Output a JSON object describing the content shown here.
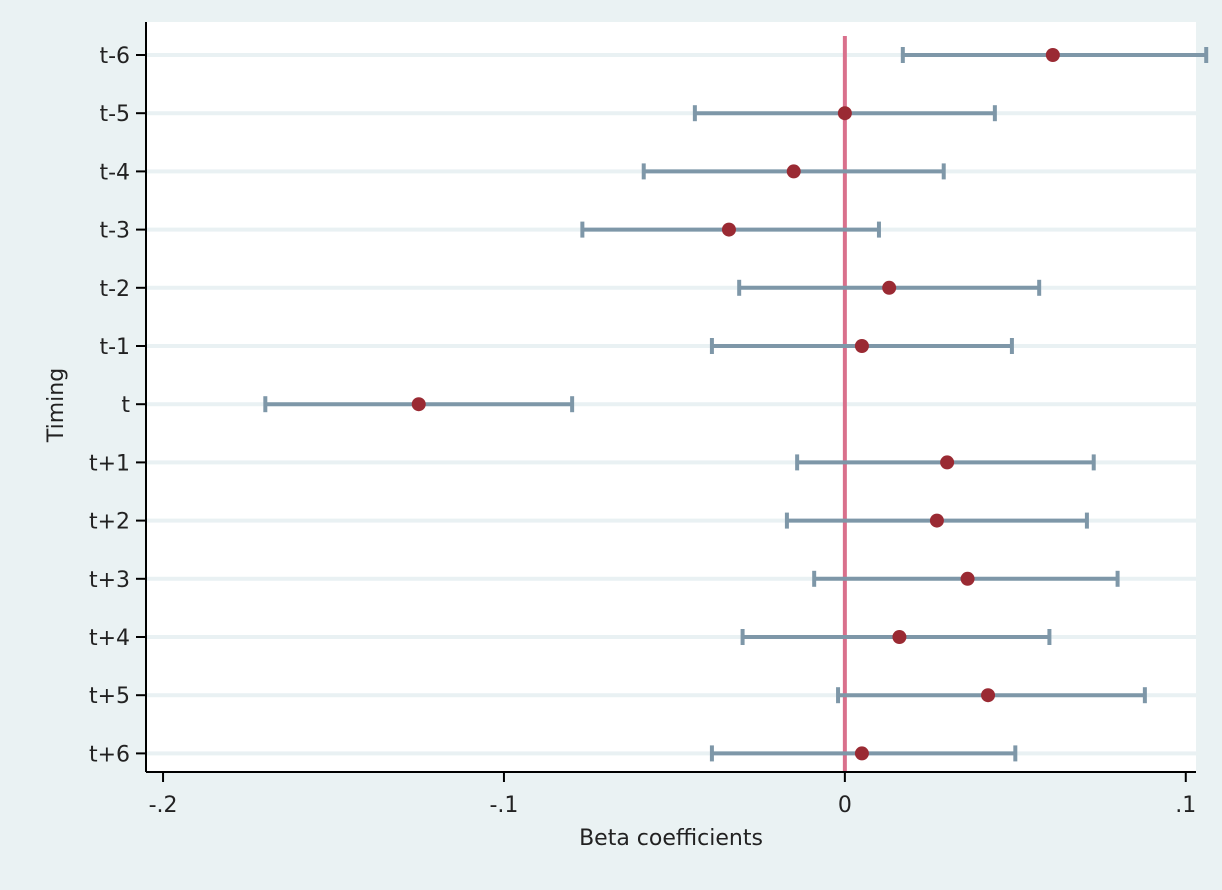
{
  "chart_data": {
    "type": "scatter",
    "title": "",
    "xlabel": "Beta coefficients",
    "ylabel": "Timing",
    "xlim": [
      -0.205,
      0.103
    ],
    "xticks": [
      {
        "value": -0.2,
        "label": "-.2"
      },
      {
        "value": -0.1,
        "label": "-.1"
      },
      {
        "value": 0,
        "label": "0"
      },
      {
        "value": 0.1,
        "label": ".1"
      }
    ],
    "reference_line": {
      "x": 0,
      "color": "#d9708c"
    },
    "grid": true,
    "categories": [
      "t-6",
      "t-5",
      "t-4",
      "t-3",
      "t-2",
      "t-1",
      "t",
      "t+1",
      "t+2",
      "t+3",
      "t+4",
      "t+5",
      "t+6"
    ],
    "estimates": [
      0.061,
      0.0,
      -0.015,
      -0.034,
      0.013,
      0.005,
      -0.125,
      0.03,
      0.027,
      0.036,
      0.016,
      0.042,
      0.005
    ],
    "ci_lower": [
      0.017,
      -0.044,
      -0.059,
      -0.077,
      -0.031,
      -0.039,
      -0.17,
      -0.014,
      -0.017,
      -0.009,
      -0.03,
      -0.002,
      -0.039
    ],
    "ci_upper": [
      0.106,
      0.044,
      0.029,
      0.01,
      0.057,
      0.049,
      -0.08,
      0.073,
      0.071,
      0.08,
      0.06,
      0.088,
      0.05
    ],
    "colors": {
      "point": "#9a2a33",
      "ci": "#7e97a8",
      "grid": "#e9f1f3",
      "plot_bg": "#ffffff",
      "background": "#eaf2f3"
    }
  }
}
